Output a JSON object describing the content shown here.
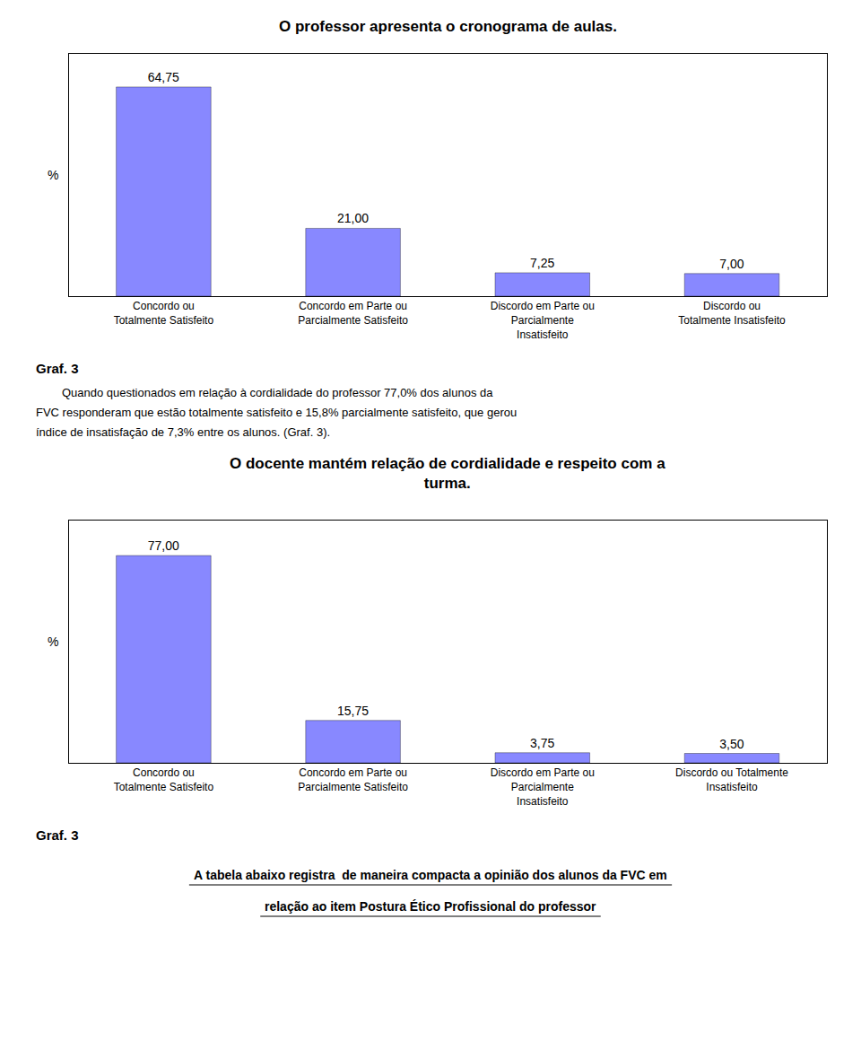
{
  "chart_data": [
    {
      "type": "bar",
      "title": "O professor apresenta o cronograma de aulas.",
      "categories": [
        "Concordo ou\nTotalmente Satisfeito",
        "Concordo em Parte ou\nParcialmente Satisfeito",
        "Discordo em Parte ou\nParcialmente\nInsatisfeito",
        "Discordo ou\nTotalmente Insatisfeito"
      ],
      "values": [
        64.75,
        21.0,
        7.25,
        7.0
      ],
      "value_labels": [
        "64,75",
        "21,00",
        "7,25",
        "7,00"
      ],
      "data_labels": true,
      "color": "#8888FF",
      "ylabel": "%",
      "ylim": [
        0,
        75
      ],
      "tick_labels": "x",
      "grid": false,
      "annotations": [
        "Graf. 3",
        "        Quando questionados em relação à cordialidade do professor 77,0% dos alunos da",
        "FVC responderam que estão totalmente satisfeito e 15,8% parcialmente satisfeito, que gerou",
        "índice de insatisfação de 7,3% entre os alunos. (Graf. 3)."
      ]
    },
    {
      "type": "bar",
      "title": "O docente mantém relação de cordialidade e respeito com a\nturma.",
      "categories": [
        "Concordo ou\nTotalmente Satisfeito",
        "Concordo em Parte ou\nParcialmente Satisfeito",
        "Discordo em Parte ou\nParcialmente\nInsatisfeito",
        "Discordo ou Totalmente\nInsatisfeito"
      ],
      "values": [
        77.0,
        15.75,
        3.75,
        3.5
      ],
      "value_labels": [
        "77,00",
        "15,75",
        "3,75",
        "3,50"
      ],
      "data_labels": true,
      "color": "#8888FF",
      "ylabel": "%",
      "ylim": [
        0,
        90
      ],
      "tick_labels": "x",
      "grid": false,
      "annotations": [
        "Graf. 3",
        "A tabela abaixo registra  de maneira compacta a opinião dos alunos da FVC em",
        "relação ao item Postura Ético Profissional do professor"
      ]
    }
  ]
}
